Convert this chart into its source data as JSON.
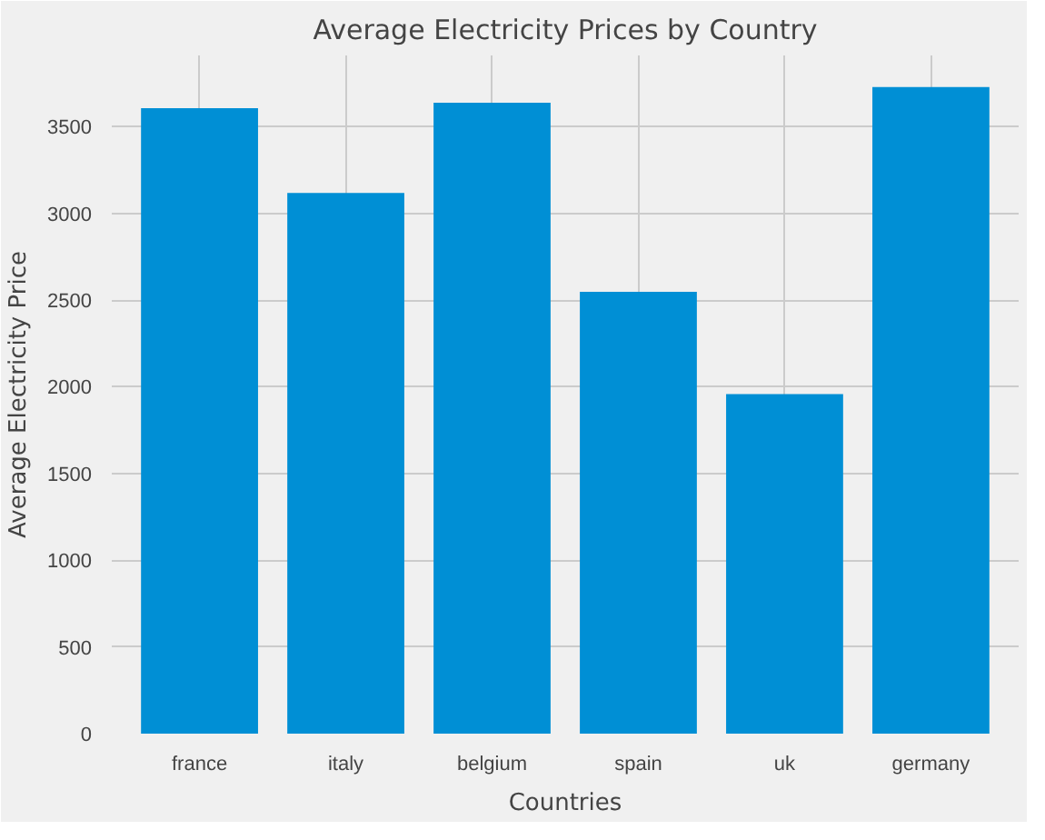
{
  "chart_data": {
    "type": "bar",
    "title": "Average Electricity Prices by Country",
    "xlabel": "Countries",
    "ylabel": "Average Electricity Price",
    "categories": [
      "france",
      "italy",
      "belgium",
      "spain",
      "uk",
      "germany"
    ],
    "values": [
      3606,
      3117,
      3638,
      2547,
      1957,
      3728
    ],
    "color": "#008fd5",
    "ylim": [
      0,
      3910
    ],
    "yticks": [
      0,
      500,
      1000,
      1500,
      2000,
      2500,
      3000,
      3500
    ],
    "grid": true
  }
}
